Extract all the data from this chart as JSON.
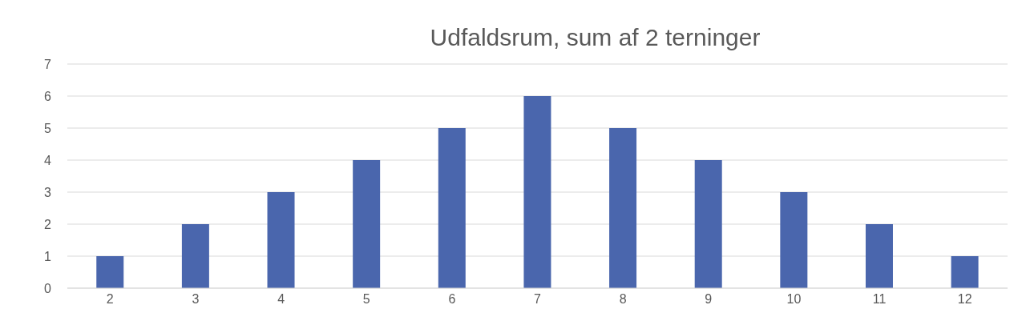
{
  "chart_data": {
    "type": "bar",
    "title": "Udfaldsrum, sum af 2 terninger",
    "categories": [
      "2",
      "3",
      "4",
      "5",
      "6",
      "7",
      "8",
      "9",
      "10",
      "11",
      "12"
    ],
    "values": [
      1,
      2,
      3,
      4,
      5,
      6,
      5,
      4,
      3,
      2,
      1
    ],
    "color": "#4a66ad",
    "ylim": [
      0,
      7
    ],
    "yticks": [
      0,
      1,
      2,
      3,
      4,
      5,
      6,
      7
    ],
    "grid": "y"
  }
}
